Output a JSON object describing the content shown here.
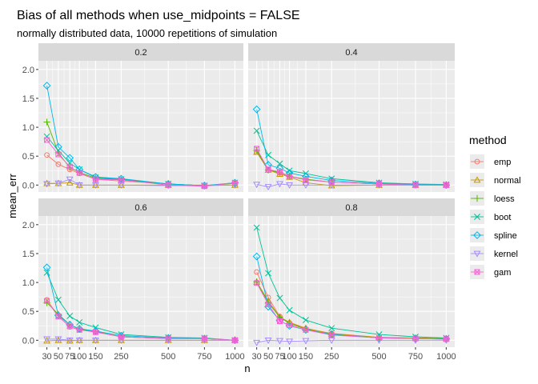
{
  "chart_data": {
    "type": "line",
    "title": "Bias of all methods when use_midpoints = FALSE",
    "subtitle": "normally distributed data, 10000 repetitions of simulation",
    "xlabel": "n",
    "ylabel": "mean_err",
    "x_ticks": [
      30,
      50,
      75,
      100,
      150,
      250,
      500,
      750,
      1000
    ],
    "x_scale": "sqrt",
    "ylim": [
      -0.12,
      2.15
    ],
    "y_ticks": [
      0.0,
      0.5,
      1.0,
      1.5,
      2.0
    ],
    "legend_title": "method",
    "legend_position": "right",
    "series_styles": [
      {
        "name": "emp",
        "color": "#F8766D",
        "shape": "circle"
      },
      {
        "name": "normal",
        "color": "#C49A00",
        "shape": "triangle"
      },
      {
        "name": "loess",
        "color": "#53B400",
        "shape": "plus"
      },
      {
        "name": "boot",
        "color": "#00C094",
        "shape": "x"
      },
      {
        "name": "spline",
        "color": "#00B6EB",
        "shape": "diamond"
      },
      {
        "name": "kernel",
        "color": "#A58AFF",
        "shape": "triangle-down"
      },
      {
        "name": "gam",
        "color": "#FB61D7",
        "shape": "square-x"
      }
    ],
    "panels": [
      {
        "label": "0.2",
        "series": {
          "emp": [
            0.52,
            0.36,
            0.27,
            0.2,
            0.1,
            0.07,
            0.02,
            -0.01,
            0.03
          ],
          "normal": [
            0.03,
            0.03,
            0.04,
            0.0,
            0.0,
            0.0,
            0.0,
            0.0,
            0.0
          ],
          "loess": [
            1.09,
            0.56,
            0.3,
            0.22,
            0.12,
            0.09,
            0.02,
            -0.01,
            0.03
          ],
          "boot": [
            0.84,
            0.6,
            0.38,
            0.27,
            0.13,
            0.1,
            0.02,
            -0.01,
            0.04
          ],
          "spline": [
            1.72,
            0.66,
            0.47,
            0.27,
            0.14,
            0.11,
            0.02,
            -0.01,
            0.04
          ],
          "kernel": [
            0.02,
            0.03,
            0.1,
            0.0,
            0.0,
            0.0,
            -0.01,
            -0.01,
            0.0
          ],
          "gam": [
            0.78,
            0.53,
            0.32,
            0.21,
            0.1,
            0.09,
            0.0,
            -0.02,
            0.04
          ]
        }
      },
      {
        "label": "0.4",
        "series": {
          "emp": [
            0.57,
            0.26,
            0.21,
            0.15,
            0.1,
            0.05,
            0.02,
            0.0,
            0.0
          ],
          "normal": [
            0.57,
            0.26,
            0.19,
            0.14,
            0.04,
            -0.01,
            0.0,
            0.0,
            0.0
          ],
          "loess": [
            0.6,
            0.26,
            0.22,
            0.15,
            0.1,
            0.05,
            0.02,
            0.0,
            0.0
          ],
          "boot": [
            0.94,
            0.52,
            0.37,
            0.25,
            0.2,
            0.11,
            0.04,
            0.02,
            0.01
          ],
          "spline": [
            1.31,
            0.35,
            0.29,
            0.21,
            0.15,
            0.08,
            0.03,
            0.01,
            0.0
          ],
          "kernel": [
            0.01,
            -0.03,
            0.02,
            0.0,
            0.0,
            0.0,
            0.0,
            0.0,
            0.0
          ],
          "gam": [
            0.63,
            0.27,
            0.23,
            0.15,
            0.09,
            0.05,
            0.02,
            0.0,
            0.0
          ]
        }
      },
      {
        "label": "0.6",
        "series": {
          "emp": [
            0.7,
            0.42,
            0.23,
            0.18,
            0.15,
            0.06,
            0.03,
            0.03,
            0.0
          ],
          "normal": [
            -0.01,
            0.0,
            -0.01,
            0.0,
            0.0,
            0.0,
            0.0,
            0.0,
            0.0
          ],
          "loess": [
            0.65,
            0.45,
            0.27,
            0.19,
            0.15,
            0.06,
            0.03,
            0.03,
            0.0
          ],
          "boot": [
            1.17,
            0.7,
            0.42,
            0.31,
            0.22,
            0.1,
            0.05,
            0.04,
            0.0
          ],
          "spline": [
            1.26,
            0.43,
            0.27,
            0.2,
            0.16,
            0.08,
            0.04,
            0.03,
            0.0
          ],
          "kernel": [
            0.02,
            0.02,
            0.0,
            0.0,
            0.0,
            0.0,
            0.0,
            0.0,
            0.0
          ],
          "gam": [
            0.68,
            0.41,
            0.24,
            0.18,
            0.14,
            0.06,
            0.03,
            0.03,
            0.0
          ]
        }
      },
      {
        "label": "0.8",
        "series": {
          "emp": [
            1.18,
            0.74,
            0.41,
            0.3,
            0.2,
            0.12,
            0.05,
            0.04,
            0.03
          ],
          "normal": [
            1.01,
            0.68,
            0.4,
            0.31,
            0.21,
            0.11,
            0.05,
            0.04,
            0.03
          ],
          "loess": [
            1.01,
            0.65,
            0.4,
            0.29,
            0.19,
            0.1,
            0.04,
            0.03,
            0.03
          ],
          "boot": [
            1.95,
            1.16,
            0.73,
            0.52,
            0.35,
            0.21,
            0.1,
            0.06,
            0.04
          ],
          "spline": [
            1.45,
            0.58,
            0.34,
            0.25,
            0.18,
            0.1,
            0.04,
            0.03,
            0.02
          ],
          "kernel": [
            -0.04,
            0.0,
            -0.01,
            -0.02,
            -0.01,
            0.0,
            0.0,
            0.0,
            0.0
          ],
          "gam": [
            0.99,
            0.62,
            0.33,
            0.26,
            0.18,
            0.09,
            0.04,
            0.03,
            0.02
          ]
        }
      }
    ]
  }
}
